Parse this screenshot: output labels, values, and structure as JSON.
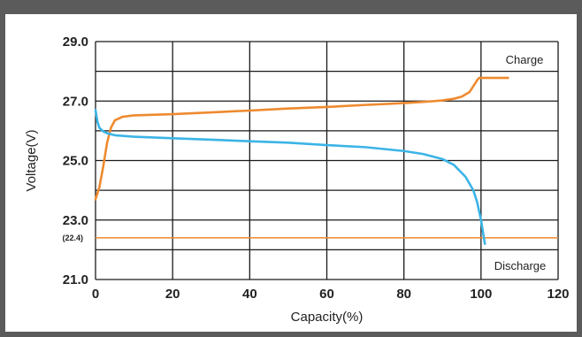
{
  "chart_data": {
    "type": "line",
    "xlabel": "Capacity(%)",
    "ylabel": "Voltage(V)",
    "xlim": [
      0,
      120
    ],
    "ylim": [
      21,
      29
    ],
    "x_ticks": [
      "0",
      "20",
      "40",
      "60",
      "80",
      "100",
      "120"
    ],
    "y_ticks": [
      "29.0",
      "27.0",
      "25.0",
      "23.0",
      "21.0"
    ],
    "y_tick_values": [
      29,
      27,
      25,
      23,
      21
    ],
    "grid": true,
    "reference_line": {
      "label": "(22.4)",
      "y": 22.4
    },
    "annotations": {
      "charge": "Charge",
      "discharge": "Discharge"
    },
    "series": [
      {
        "name": "Charge",
        "color": "#ee8a2f",
        "points": [
          [
            0,
            23.7
          ],
          [
            1,
            24.1
          ],
          [
            2,
            24.8
          ],
          [
            3,
            25.6
          ],
          [
            4,
            26.1
          ],
          [
            5,
            26.35
          ],
          [
            7,
            26.47
          ],
          [
            10,
            26.52
          ],
          [
            20,
            26.56
          ],
          [
            30,
            26.62
          ],
          [
            40,
            26.68
          ],
          [
            50,
            26.75
          ],
          [
            60,
            26.8
          ],
          [
            70,
            26.87
          ],
          [
            80,
            26.93
          ],
          [
            85,
            26.97
          ],
          [
            90,
            27.02
          ],
          [
            93,
            27.08
          ],
          [
            95,
            27.15
          ],
          [
            97,
            27.3
          ],
          [
            98,
            27.5
          ],
          [
            99,
            27.7
          ],
          [
            99.5,
            27.78
          ],
          [
            100,
            27.78
          ],
          [
            107,
            27.78
          ]
        ]
      },
      {
        "name": "Discharge",
        "color": "#3bb4e6",
        "points": [
          [
            0,
            26.7
          ],
          [
            0.5,
            26.3
          ],
          [
            1,
            26.1
          ],
          [
            2,
            25.98
          ],
          [
            3,
            25.92
          ],
          [
            5,
            25.85
          ],
          [
            10,
            25.8
          ],
          [
            20,
            25.75
          ],
          [
            30,
            25.7
          ],
          [
            40,
            25.65
          ],
          [
            50,
            25.6
          ],
          [
            60,
            25.52
          ],
          [
            70,
            25.45
          ],
          [
            80,
            25.32
          ],
          [
            85,
            25.22
          ],
          [
            90,
            25.05
          ],
          [
            93,
            24.85
          ],
          [
            96,
            24.45
          ],
          [
            98,
            24.0
          ],
          [
            99,
            23.6
          ],
          [
            100,
            23.0
          ],
          [
            100.5,
            22.6
          ],
          [
            101,
            22.2
          ]
        ]
      }
    ]
  }
}
